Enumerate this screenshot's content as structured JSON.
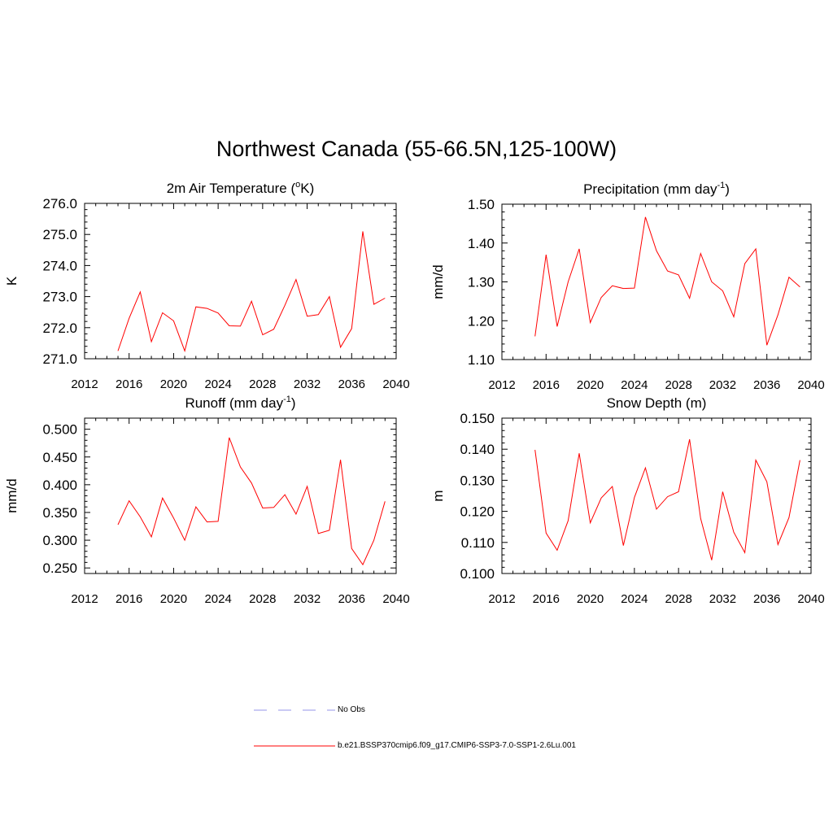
{
  "title": "Northwest Canada (55-66.5N,125-100W)",
  "legend": {
    "items": [
      {
        "label": "No Obs",
        "style": "dashed",
        "color": "#aaaaee"
      },
      {
        "label": "b.e21.BSSP370cmip6.f09_g17.CMIP6-SSP3-7.0-SSP1-2.6Lu.001",
        "style": "solid",
        "color": "#ff0000"
      }
    ]
  },
  "chart_data": [
    {
      "type": "line",
      "title": "2m Air Temperature (°K)",
      "title_main": "2m Air Temperature (",
      "title_sup": "o",
      "title_tail": "K)",
      "ylabel": "K",
      "xlabel": "",
      "xlim": [
        2012,
        2040
      ],
      "ylim": [
        271.0,
        276.0
      ],
      "xticks": [
        "2012",
        "2016",
        "2020",
        "2024",
        "2028",
        "2032",
        "2036",
        "2040"
      ],
      "yticks": [
        "271.0",
        "272.0",
        "273.0",
        "274.0",
        "275.0",
        "276.0"
      ],
      "grid": false,
      "color": "#ff0000",
      "x": [
        2015,
        2016,
        2017,
        2018,
        2019,
        2020,
        2021,
        2022,
        2023,
        2024,
        2025,
        2026,
        2027,
        2028,
        2029,
        2030,
        2031,
        2032,
        2033,
        2034,
        2035,
        2036,
        2037,
        2038,
        2039
      ],
      "y": [
        271.25,
        272.3,
        273.15,
        271.55,
        272.48,
        272.22,
        271.25,
        272.67,
        272.62,
        272.47,
        272.06,
        272.05,
        272.85,
        271.77,
        271.95,
        272.72,
        273.55,
        272.37,
        272.42,
        273.0,
        271.37,
        271.97,
        275.1,
        272.75,
        272.95
      ]
    },
    {
      "type": "line",
      "title": "Precipitation (mm day-1)",
      "title_main": "Precipitation (mm day",
      "title_sup": "-1",
      "title_tail": ")",
      "ylabel": "mm/d",
      "xlabel": "",
      "xlim": [
        2012,
        2040
      ],
      "ylim": [
        1.1,
        1.5
      ],
      "xticks": [
        "2012",
        "2016",
        "2020",
        "2024",
        "2028",
        "2032",
        "2036",
        "2040"
      ],
      "yticks": [
        "1.10",
        "1.20",
        "1.30",
        "1.40",
        "1.50"
      ],
      "grid": false,
      "color": "#ff0000",
      "x": [
        2015,
        2016,
        2017,
        2018,
        2019,
        2020,
        2021,
        2022,
        2023,
        2024,
        2025,
        2026,
        2027,
        2028,
        2029,
        2030,
        2031,
        2032,
        2033,
        2034,
        2035,
        2036,
        2037,
        2038,
        2039
      ],
      "y": [
        1.16,
        1.37,
        1.185,
        1.3,
        1.385,
        1.195,
        1.26,
        1.29,
        1.283,
        1.284,
        1.467,
        1.38,
        1.328,
        1.318,
        1.258,
        1.373,
        1.3,
        1.277,
        1.21,
        1.347,
        1.385,
        1.137,
        1.215,
        1.312,
        1.287
      ]
    },
    {
      "type": "line",
      "title": "Runoff (mm day-1)",
      "title_main": "Runoff (mm day",
      "title_sup": "-1",
      "title_tail": ")",
      "ylabel": "mm/d",
      "xlabel": "",
      "xlim": [
        2012,
        2040
      ],
      "ylim": [
        0.24,
        0.52
      ],
      "xticks": [
        "2012",
        "2016",
        "2020",
        "2024",
        "2028",
        "2032",
        "2036",
        "2040"
      ],
      "yticks": [
        "0.250",
        "0.300",
        "0.350",
        "0.400",
        "0.450",
        "0.500"
      ],
      "grid": false,
      "color": "#ff0000",
      "x": [
        2015,
        2016,
        2017,
        2018,
        2019,
        2020,
        2021,
        2022,
        2023,
        2024,
        2025,
        2026,
        2027,
        2028,
        2029,
        2030,
        2031,
        2032,
        2033,
        2034,
        2035,
        2036,
        2037,
        2038,
        2039
      ],
      "y": [
        0.328,
        0.371,
        0.342,
        0.306,
        0.376,
        0.34,
        0.3,
        0.36,
        0.333,
        0.334,
        0.485,
        0.432,
        0.403,
        0.358,
        0.359,
        0.382,
        0.347,
        0.397,
        0.312,
        0.318,
        0.445,
        0.285,
        0.256,
        0.3,
        0.37
      ]
    },
    {
      "type": "line",
      "title": "Snow Depth (m)",
      "title_main": "Snow Depth (m)",
      "title_sup": "",
      "title_tail": "",
      "ylabel": "m",
      "xlabel": "",
      "xlim": [
        2012,
        2040
      ],
      "ylim": [
        0.1,
        0.15
      ],
      "xticks": [
        "2012",
        "2016",
        "2020",
        "2024",
        "2028",
        "2032",
        "2036",
        "2040"
      ],
      "yticks": [
        "0.100",
        "0.110",
        "0.120",
        "0.130",
        "0.140",
        "0.150"
      ],
      "grid": false,
      "color": "#ff0000",
      "x": [
        2015,
        2016,
        2017,
        2018,
        2019,
        2020,
        2021,
        2022,
        2023,
        2024,
        2025,
        2026,
        2027,
        2028,
        2029,
        2030,
        2031,
        2032,
        2033,
        2034,
        2035,
        2036,
        2037,
        2038,
        2039
      ],
      "y": [
        0.1398,
        0.113,
        0.1075,
        0.117,
        0.1387,
        0.1163,
        0.1243,
        0.128,
        0.109,
        0.1245,
        0.134,
        0.1207,
        0.1247,
        0.1263,
        0.1432,
        0.1177,
        0.1043,
        0.1263,
        0.1133,
        0.1067,
        0.1365,
        0.1295,
        0.1093,
        0.118,
        0.1365
      ]
    }
  ]
}
